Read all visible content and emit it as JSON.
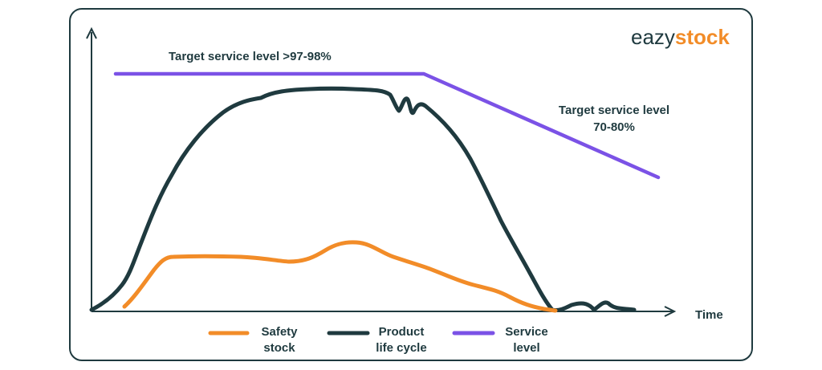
{
  "logo": {
    "part1": "eazy",
    "part2": "stock"
  },
  "annotations": {
    "high_target": "Target service level >97-98%",
    "low_target_line1": "Target service level",
    "low_target_line2": "70-80%"
  },
  "axis": {
    "x_label": "Time"
  },
  "legend": [
    {
      "line1": "Safety",
      "line2": "stock",
      "color": "#f28c28"
    },
    {
      "line1": "Product",
      "line2": "life cycle",
      "color": "#1f3a3f"
    },
    {
      "line1": "Service",
      "line2": "level",
      "color": "#7b52e6"
    }
  ],
  "colors": {
    "safety_stock": "#f28c28",
    "product_life_cycle": "#1f3a3f",
    "service_level": "#7b52e6",
    "axis": "#1f3a3f"
  }
}
